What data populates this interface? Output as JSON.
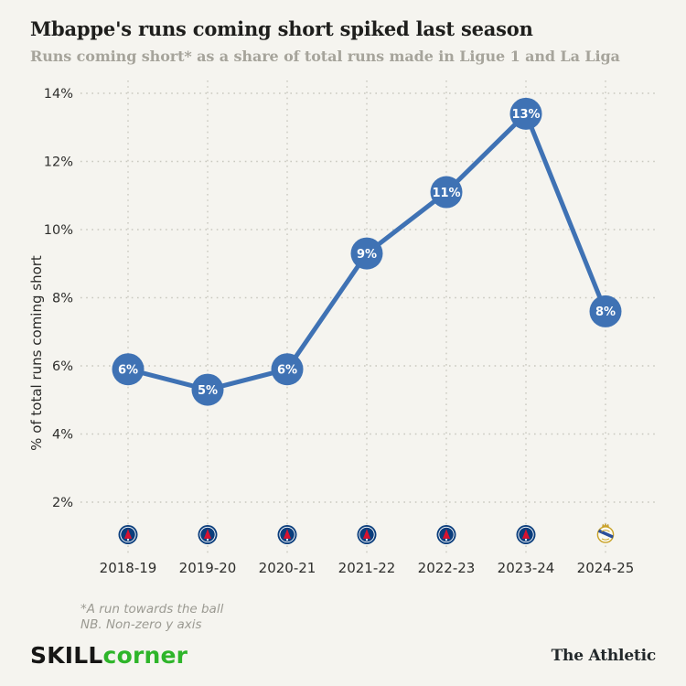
{
  "header": {
    "title": "Mbappe's runs coming short spiked last season",
    "subtitle": "Runs coming short* as a share of total runs made in Ligue 1 and La Liga"
  },
  "chart_data": {
    "type": "line",
    "title": "Mbappe's runs coming short spiked last season",
    "subtitle": "Runs coming short* as a share of total runs made in Ligue 1 and La Liga",
    "categories": [
      "2018-19",
      "2019-20",
      "2020-21",
      "2021-22",
      "2022-23",
      "2023-24",
      "2024-25"
    ],
    "values": [
      5.9,
      5.3,
      5.9,
      9.3,
      11.1,
      13.4,
      7.6
    ],
    "point_labels": [
      "6%",
      "5%",
      "6%",
      "9%",
      "11%",
      "13%",
      "8%"
    ],
    "clubs": [
      "PSG",
      "PSG",
      "PSG",
      "PSG",
      "PSG",
      "PSG",
      "Real Madrid"
    ],
    "xlabel": "",
    "ylabel": "% of total runs coming short",
    "y_ticks": [
      "2%",
      "4%",
      "6%",
      "8%",
      "10%",
      "12%",
      "14%"
    ],
    "y_tick_values": [
      2,
      4,
      6,
      8,
      10,
      12,
      14
    ],
    "ylim": [
      2,
      14
    ],
    "grid": "dotted",
    "legend": "none",
    "line_color": "#3f72b4",
    "point_color": "#3f72b4",
    "point_label_color": "#ffffff"
  },
  "footnotes": {
    "line1": "*A run towards the ball",
    "line2": "NB. Non-zero y axis"
  },
  "branding": {
    "skill": "SKILL",
    "corner": "corner",
    "corner_color": "#2eb52a",
    "athletic": "The Athletic"
  },
  "colors": {
    "background": "#f5f4ef",
    "accent_blue": "#3f72b4",
    "grid": "#c9c8bf",
    "title": "#1e1e1c",
    "subtitle": "#a6a49b"
  }
}
